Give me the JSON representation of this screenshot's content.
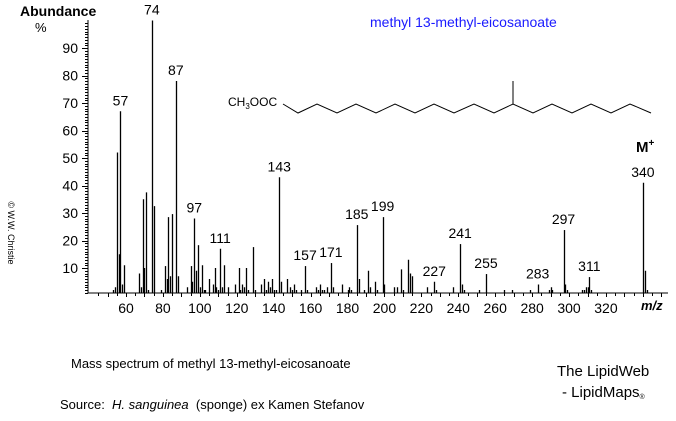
{
  "header": {
    "ylabel_title": "Abundance",
    "ylabel_unit": "%",
    "title": "methyl 13-methyl-eicosanoate",
    "copyright": "© W.W. Christie"
  },
  "structure": {
    "formula_prefix": "CH",
    "formula_sub": "3",
    "formula_suffix": "OOC",
    "molecular_ion_label": "M",
    "molecular_ion_sup": "+"
  },
  "footer": {
    "caption": "Mass spectrum of methyl 13-methyl-eicosanoate",
    "source_prefix": "Source:  ",
    "source_species": "H. sanguinea",
    "source_suffix": "  (sponge) ex Kamen Stefanov",
    "brand_line1": "The LipidWeb",
    "brand_line2": "- LipidMaps",
    "brand_mark": "®"
  },
  "colors": {
    "title": "#1a1aff",
    "bars": "#000000",
    "axis": "#000000"
  },
  "chart_data": {
    "type": "bar",
    "title": "methyl 13-methyl-eicosanoate",
    "xlabel": "m/z",
    "ylabel": "Abundance %",
    "xlim": [
      40,
      350
    ],
    "ylim": [
      0,
      100
    ],
    "x_ticks": [
      60,
      80,
      100,
      120,
      140,
      160,
      180,
      200,
      220,
      240,
      260,
      280,
      300,
      320
    ],
    "y_ticks": [
      10,
      20,
      30,
      40,
      50,
      60,
      70,
      80,
      90
    ],
    "grid": false,
    "legend": null,
    "labeled_peaks": [
      57,
      74,
      87,
      97,
      111,
      143,
      157,
      171,
      185,
      199,
      227,
      241,
      255,
      283,
      297,
      311,
      340
    ],
    "annotations": [
      "M+ (340)"
    ],
    "x": [
      53,
      54,
      55,
      56,
      57,
      58,
      59,
      60,
      65,
      67,
      68,
      69,
      70,
      71,
      72,
      73,
      74,
      75,
      76,
      77,
      79,
      80,
      81,
      82,
      83,
      84,
      85,
      86,
      87,
      88,
      89,
      90,
      91,
      93,
      95,
      96,
      97,
      98,
      99,
      100,
      101,
      102,
      103,
      105,
      107,
      108,
      109,
      110,
      111,
      112,
      113,
      115,
      119,
      121,
      122,
      123,
      124,
      125,
      126,
      127,
      129,
      130,
      133,
      135,
      136,
      137,
      138,
      139,
      140,
      141,
      143,
      144,
      147,
      149,
      150,
      151,
      152,
      153,
      155,
      157,
      158,
      163,
      164,
      165,
      166,
      167,
      169,
      171,
      172,
      173,
      177,
      180,
      181,
      182,
      183,
      185,
      186,
      189,
      191,
      192,
      195,
      196,
      199,
      200,
      205,
      207,
      209,
      210,
      213,
      214,
      215,
      223,
      227,
      228,
      237,
      241,
      242,
      243,
      251,
      255,
      256,
      265,
      269,
      279,
      283,
      289,
      290,
      291,
      297,
      298,
      299,
      305,
      307,
      308,
      309,
      310,
      311,
      312,
      340,
      341,
      342
    ],
    "values": [
      2,
      3,
      52,
      15,
      67,
      4,
      11,
      1,
      1,
      8,
      3,
      35,
      10,
      37.5,
      2,
      1,
      100,
      32.5,
      1,
      1,
      2,
      1,
      10.7,
      6,
      28.5,
      7,
      29.6,
      1,
      78,
      7,
      1,
      1,
      1,
      3,
      10.7,
      5,
      28,
      9,
      18.3,
      3,
      11,
      2,
      2,
      6,
      4,
      10,
      3,
      2,
      17,
      3,
      11,
      3,
      4,
      10,
      2,
      4,
      3,
      10,
      2,
      1,
      17.6,
      2,
      4,
      6,
      2,
      5,
      3,
      6,
      2,
      2,
      43,
      5,
      6,
      3,
      2,
      4,
      2,
      1,
      2,
      10.7,
      2,
      3,
      2,
      4,
      2,
      2,
      3,
      11.8,
      3,
      1,
      4,
      2,
      3,
      2,
      1,
      25.6,
      6,
      2,
      9,
      3,
      5,
      2,
      28.5,
      4,
      3,
      3,
      9.5,
      2,
      13,
      8,
      7,
      3,
      5,
      2,
      3,
      18.7,
      4,
      2,
      2,
      7.8,
      1,
      2,
      2,
      2,
      4,
      2,
      3,
      2,
      23.8,
      4,
      2,
      1,
      2,
      2,
      3,
      3,
      6.7,
      2,
      41,
      9,
      2
    ]
  }
}
